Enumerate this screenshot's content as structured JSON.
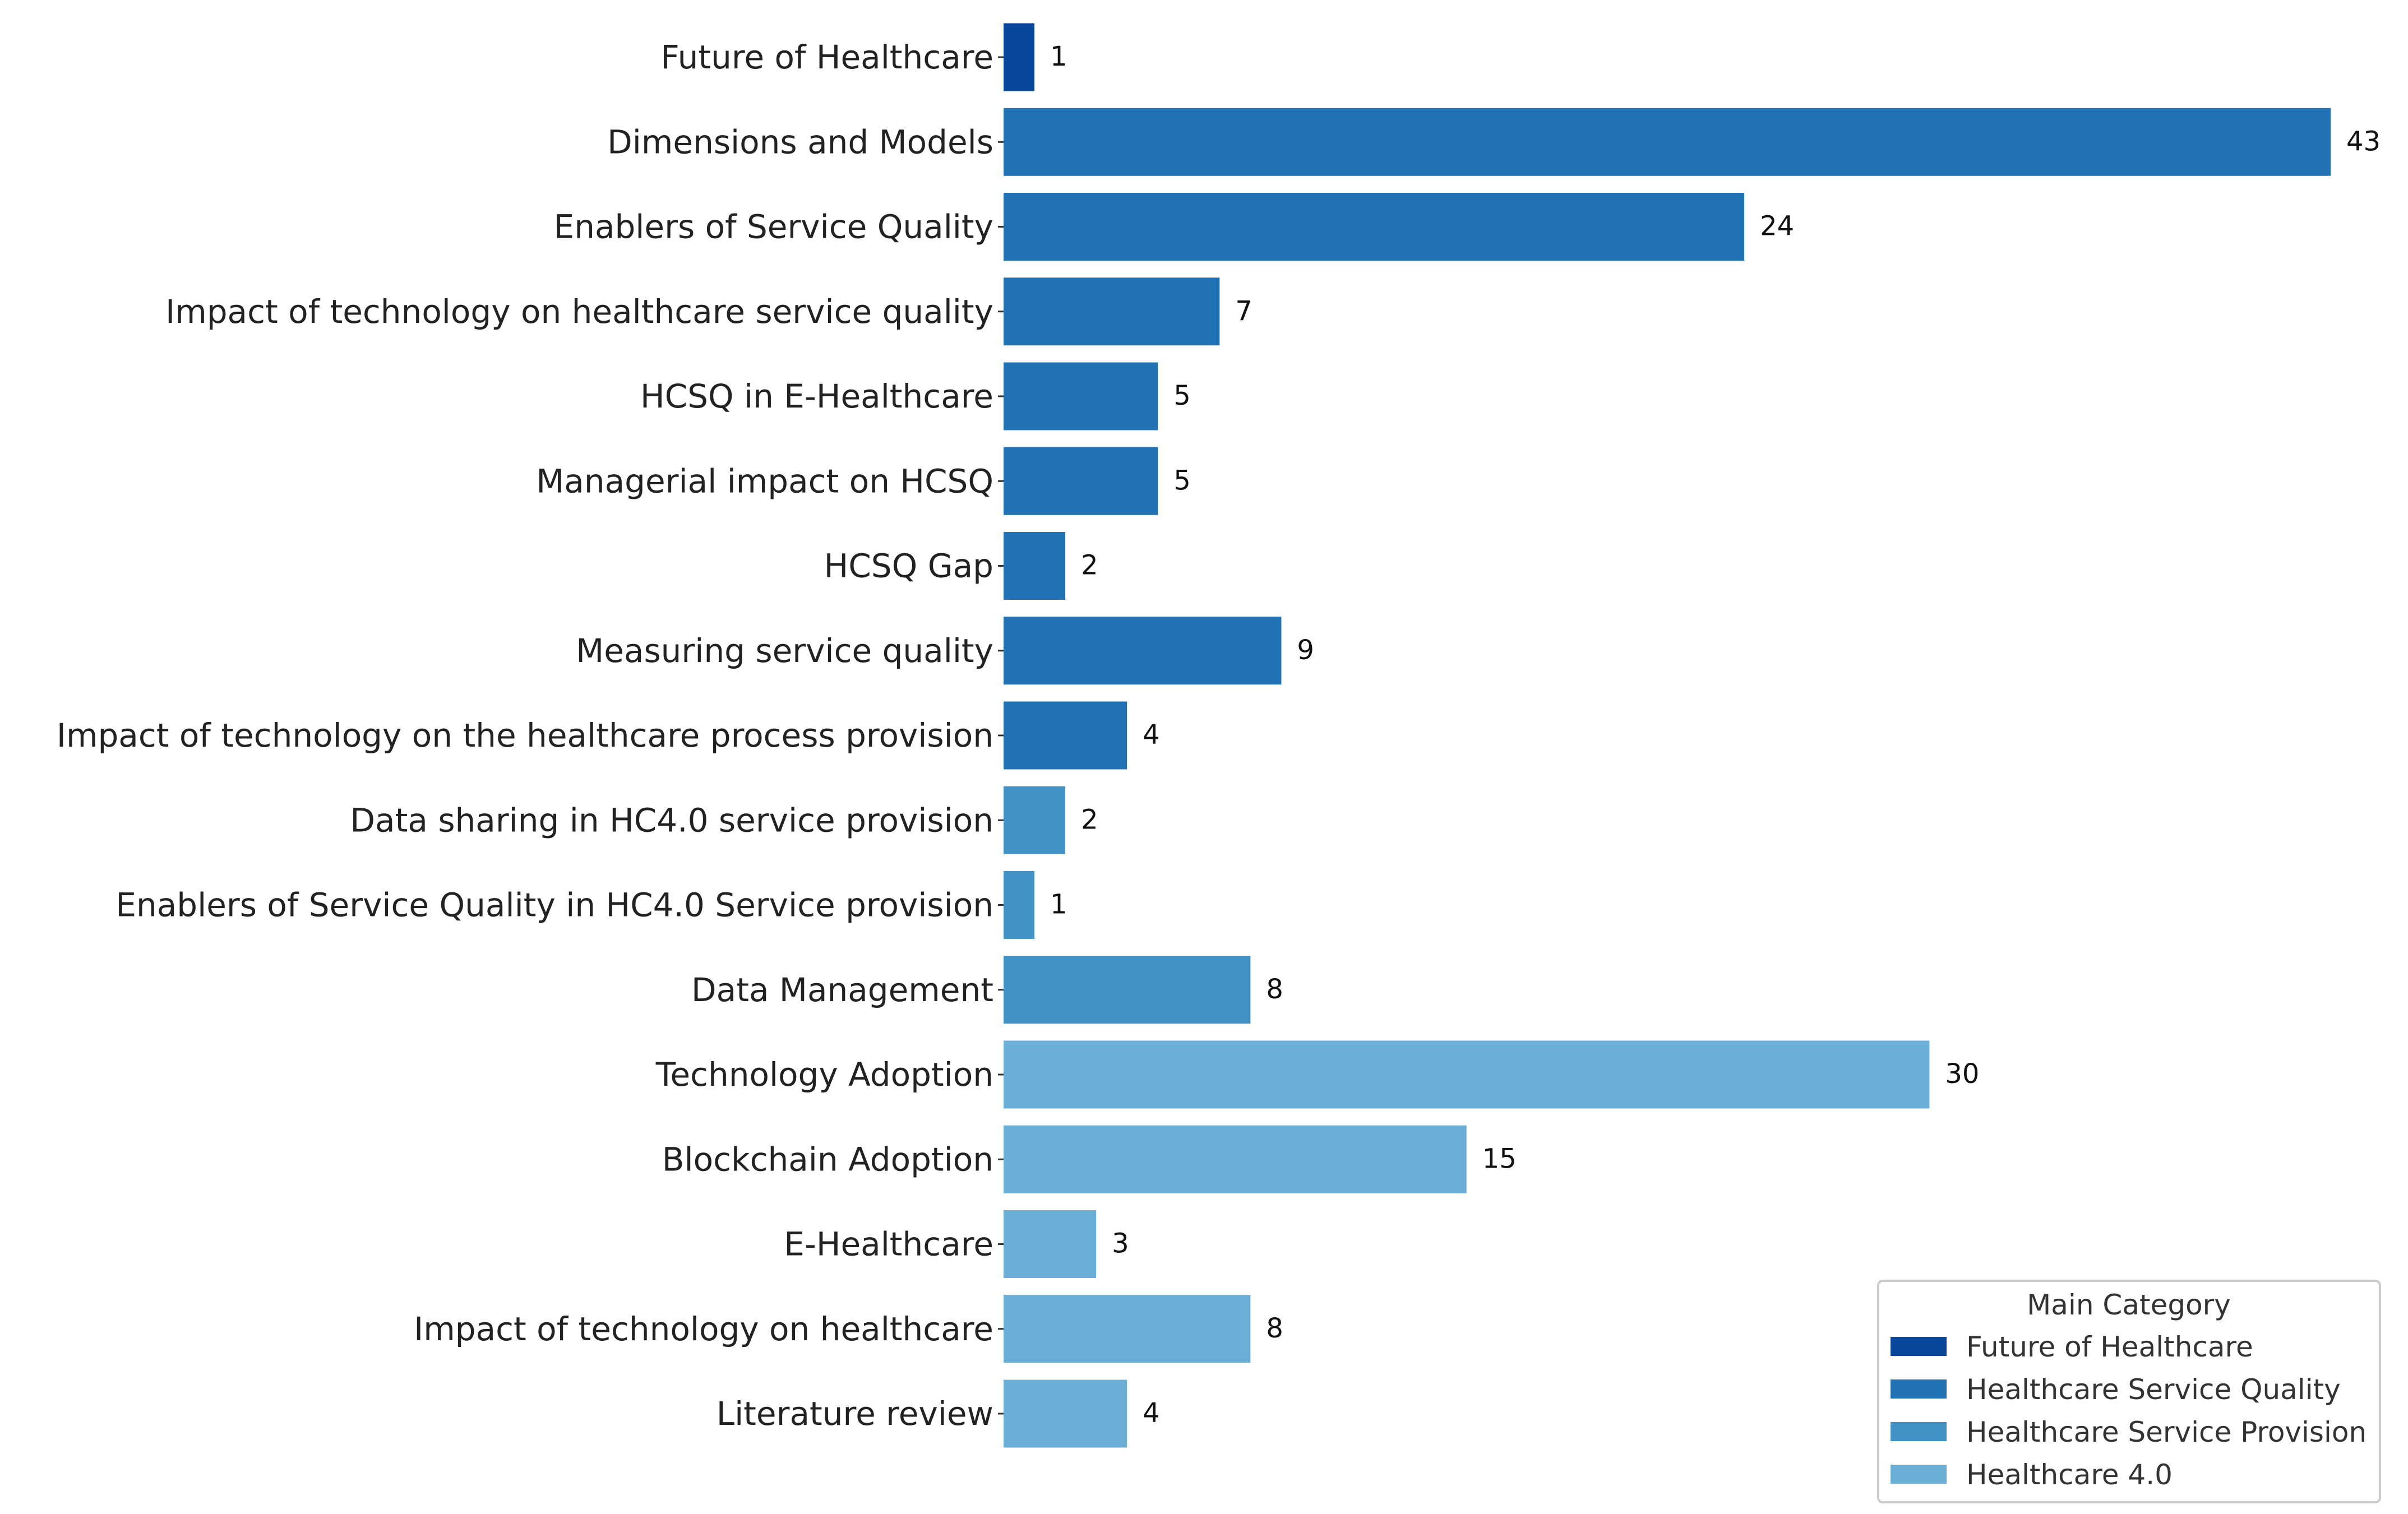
{
  "chart_data": {
    "type": "bar",
    "orientation": "horizontal",
    "title": "",
    "xlabel": "",
    "ylabel": "",
    "xlim": [
      0,
      43
    ],
    "grid": false,
    "legend_position": "bottom-right",
    "categories": [
      "Future of Healthcare",
      "Dimensions and Models",
      "Enablers of Service Quality",
      "Impact of technology on healthcare service quality",
      "HCSQ in E-Healthcare",
      "Managerial impact on HCSQ",
      "HCSQ Gap",
      "Measuring service quality",
      "Impact of technology on the healthcare process provision",
      "Data sharing in HC4.0 service provision",
      "Enablers of Service Quality in HC4.0 Service provision",
      "Data Management",
      "Technology Adoption",
      "Blockchain Adoption",
      "E-Healthcare",
      "Impact of technology on healthcare",
      "Literature review"
    ],
    "values": [
      1,
      43,
      24,
      7,
      5,
      5,
      2,
      9,
      4,
      2,
      1,
      8,
      30,
      15,
      3,
      8,
      4
    ],
    "groups": [
      0,
      1,
      1,
      1,
      1,
      1,
      1,
      1,
      1,
      2,
      2,
      2,
      3,
      3,
      3,
      3,
      3
    ],
    "legend": {
      "title": "Main Category",
      "entries": [
        {
          "name": "Future of Healthcare",
          "color": "#08479a"
        },
        {
          "name": "Healthcare Service Quality",
          "color": "#2171b5"
        },
        {
          "name": "Healthcare Service Provision",
          "color": "#4292c6"
        },
        {
          "name": "Healthcare 4.0",
          "color": "#6baed6"
        }
      ]
    }
  }
}
